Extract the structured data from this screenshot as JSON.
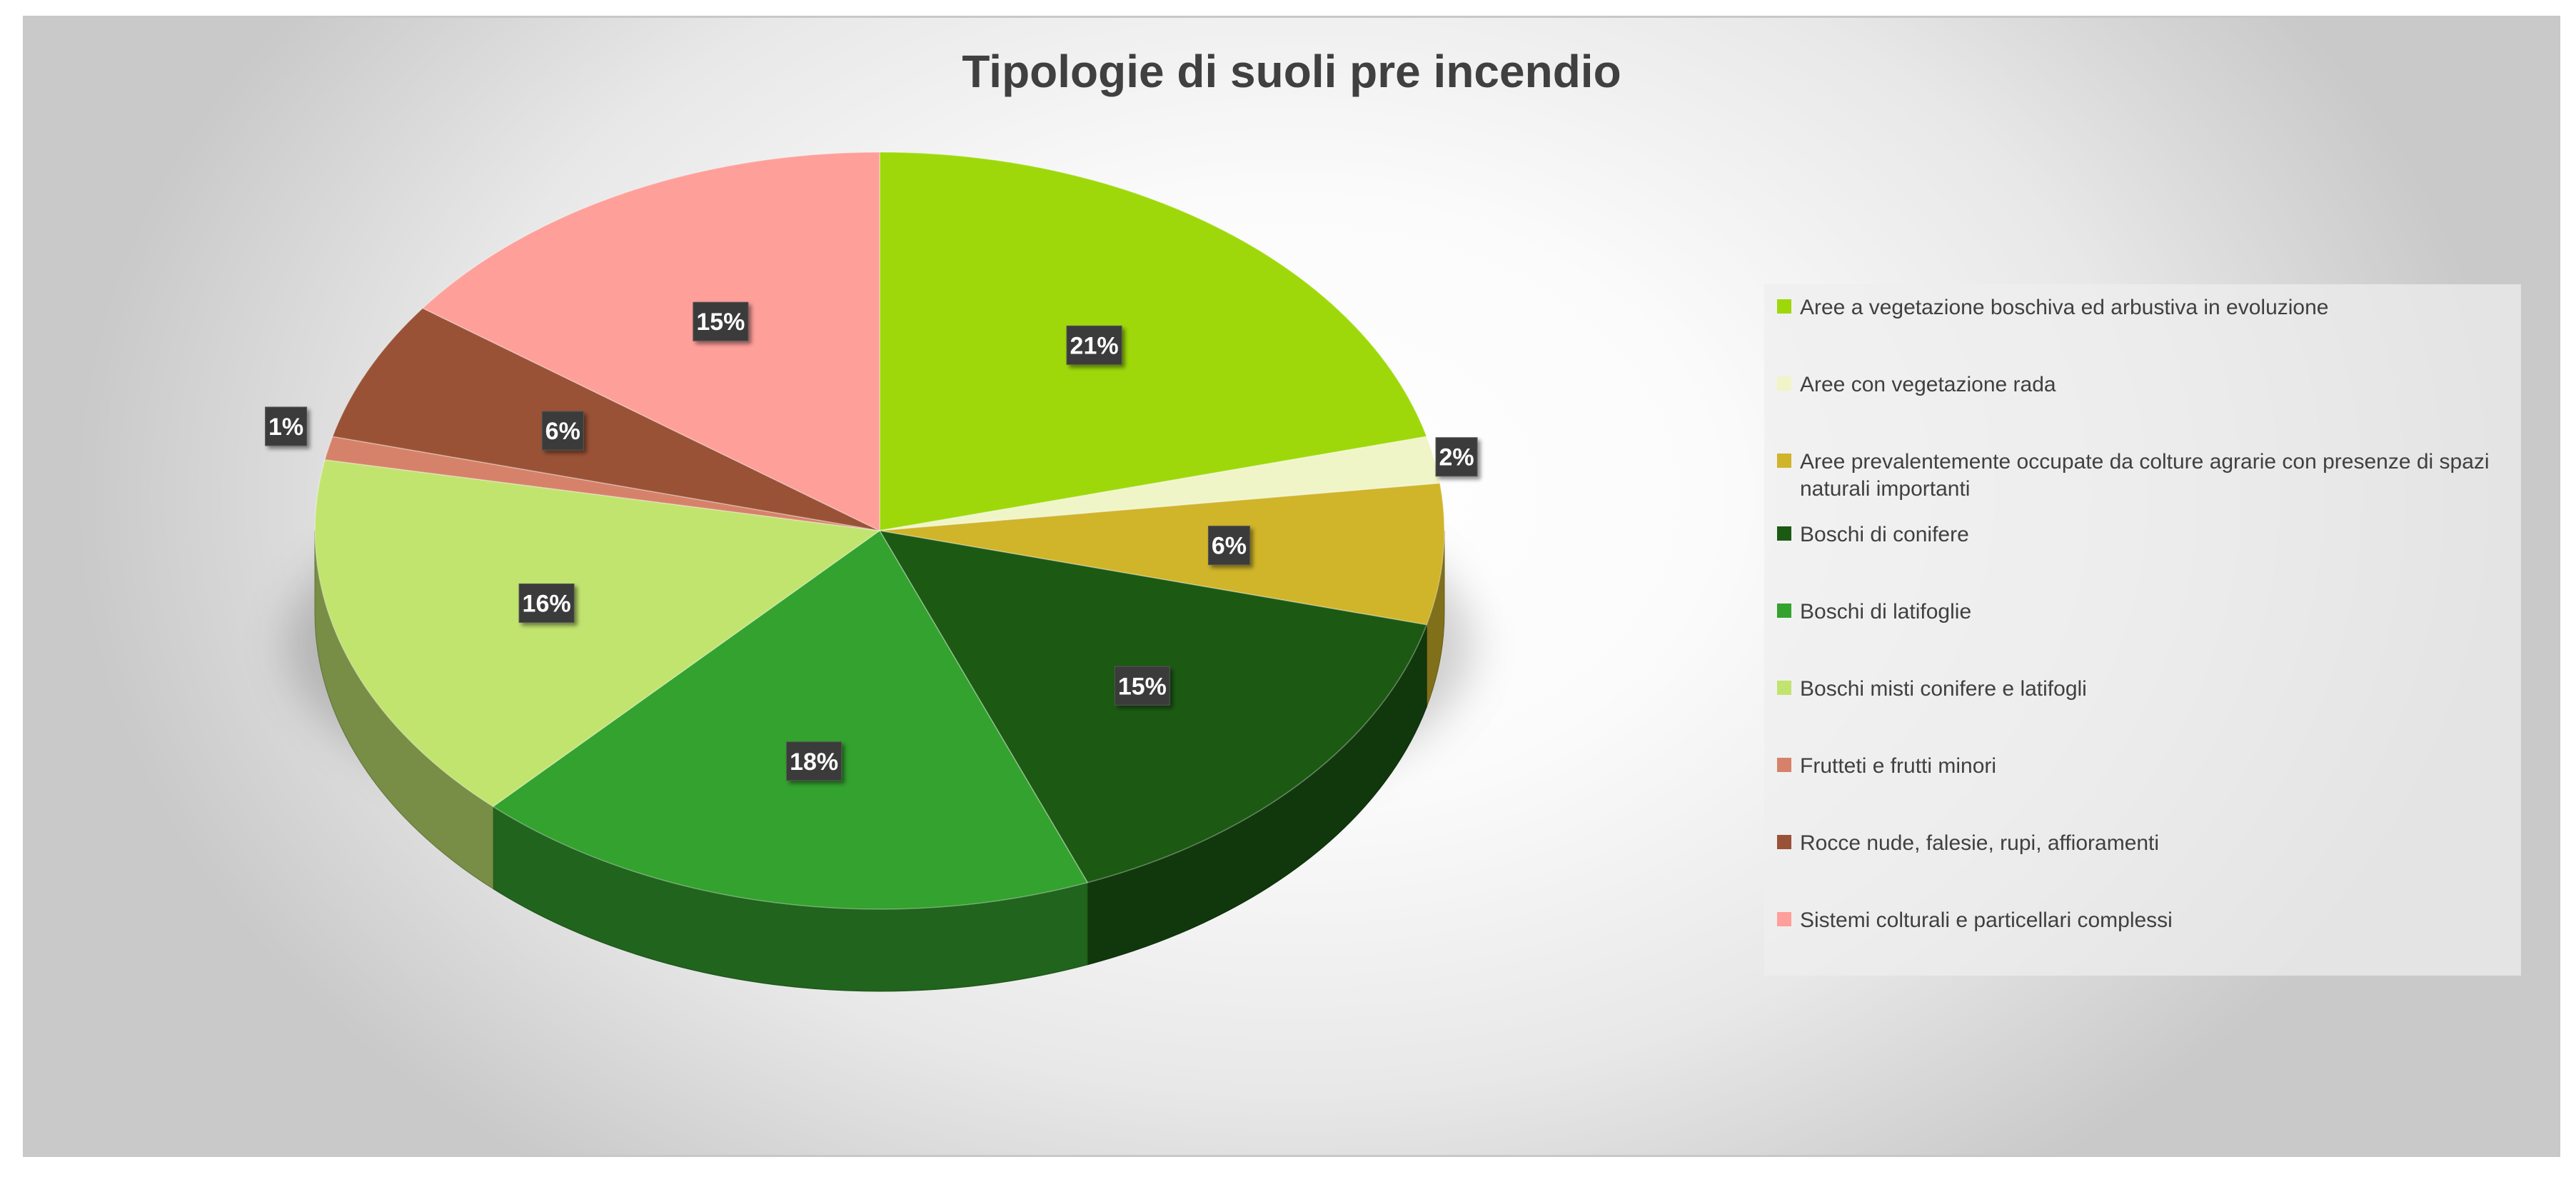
{
  "chart_data": {
    "type": "pie",
    "title": "Tipologie di suoli pre incendio",
    "legend_position": "right",
    "slices": [
      {
        "label": "Aree a vegetazione boschiva ed arbustiva in evoluzione",
        "value": 21,
        "value_label": "21%",
        "color": "#9ed80b"
      },
      {
        "label": "Aree con vegetazione rada",
        "value": 2,
        "value_label": "2%",
        "color": "#f0f5c7"
      },
      {
        "label": "Aree prevalentemente occupate da colture agrarie con presenze di spazi naturali importanti",
        "value": 6,
        "value_label": "6%",
        "color": "#d0b42a"
      },
      {
        "label": "Boschi di conifere",
        "value": 15,
        "value_label": "15%",
        "color": "#1c5a14"
      },
      {
        "label": "Boschi di latifoglie",
        "value": 18,
        "value_label": "18%",
        "color": "#33a22e"
      },
      {
        "label": "Boschi misti conifere e latifogli",
        "value": 16,
        "value_label": "16%",
        "color": "#c1e46f"
      },
      {
        "label": "Frutteti e frutti minori",
        "value": 1,
        "value_label": "1%",
        "color": "#d6826a"
      },
      {
        "label": "Rocce nude, falesie, rupi, affioramenti",
        "value": 6,
        "value_label": "6%",
        "color": "#9a5236"
      },
      {
        "label": "Sistemi colturali e particellari complessi",
        "value": 15,
        "value_label": "15%",
        "color": "#ff9f9a"
      }
    ]
  }
}
